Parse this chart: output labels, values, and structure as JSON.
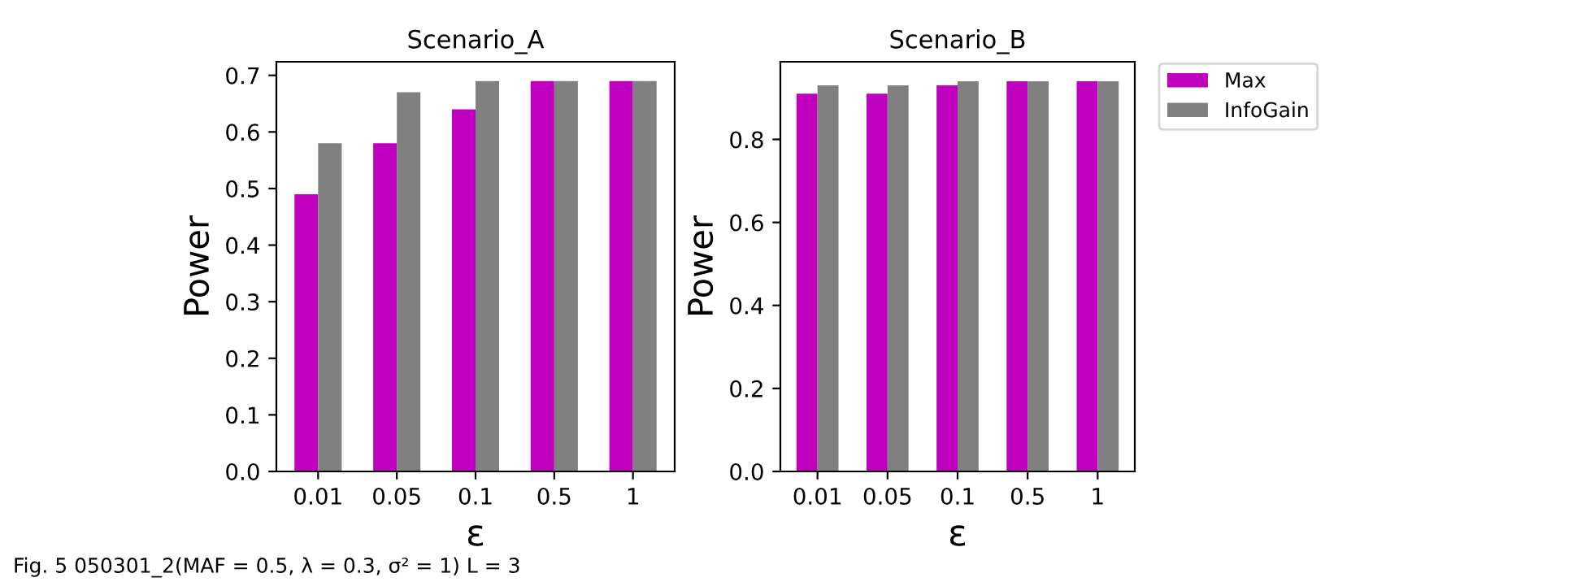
{
  "chart_data": [
    {
      "type": "bar",
      "title": "Scenario_A",
      "xlabel": "ε",
      "ylabel": "Power",
      "categories": [
        "0.01",
        "0.05",
        "0.1",
        "0.5",
        "1"
      ],
      "series": [
        {
          "color": "#bf00bf",
          "values": [
            0.49,
            0.58,
            0.64,
            0.69,
            0.69
          ]
        },
        {
          "color": "#808080",
          "values": [
            0.58,
            0.67,
            0.69,
            0.69,
            0.69
          ]
        }
      ],
      "ylim": [
        0,
        0.724
      ],
      "yticks": [
        {
          "value": 0,
          "label": "0.0"
        },
        0.1,
        0.2,
        0.3,
        0.4,
        0.5,
        0.6,
        0.7
      ],
      "annotations": [
        "Fig. 5 050301_2(MAF = 0.5, λ = 0.3, σ² = 1) L = 3"
      ],
      "grid": false,
      "legend": false
    },
    {
      "type": "bar",
      "title": "Scenario_B",
      "xlabel": "ε",
      "ylabel": "Power",
      "categories": [
        "0.01",
        "0.05",
        "0.1",
        "0.5",
        "1"
      ],
      "series": [
        {
          "name": "Max",
          "color": "#bf00bf",
          "values": [
            0.91,
            0.91,
            0.93,
            0.94,
            0.94
          ]
        },
        {
          "name": "InfoGain",
          "color": "#808080",
          "values": [
            0.93,
            0.93,
            0.94,
            0.94,
            0.94
          ]
        }
      ],
      "ylim": [
        0,
        0.987
      ],
      "yticks": [
        {
          "value": 0,
          "label": "0.0"
        },
        0.2,
        0.4,
        0.6,
        0.8
      ],
      "grid": false,
      "legend": "top right"
    }
  ]
}
